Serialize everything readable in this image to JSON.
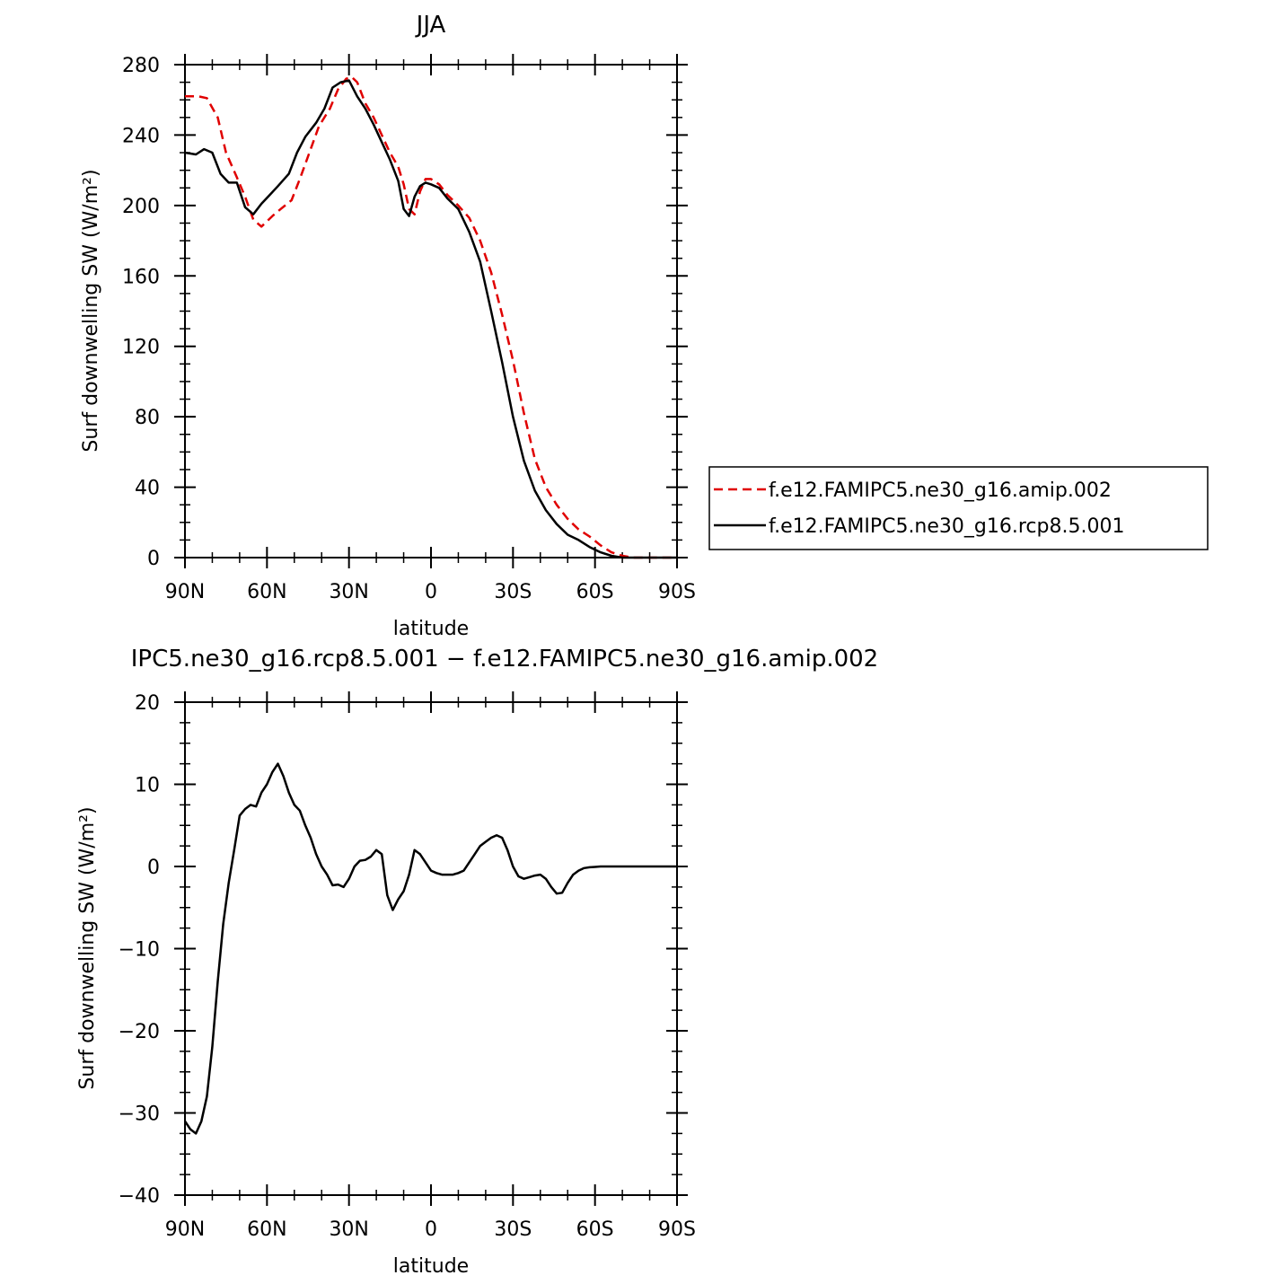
{
  "chart_data": [
    {
      "type": "line",
      "title": "JJA",
      "xlabel": "latitude",
      "ylabel": "Surf downwelling SW (W/m²)",
      "xlim": [
        90,
        -90
      ],
      "ylim": [
        0,
        280
      ],
      "xticks": [
        90,
        60,
        30,
        0,
        -30,
        -60,
        -90
      ],
      "xtick_labels": [
        "90N",
        "60N",
        "30N",
        "0",
        "30S",
        "60S",
        "90S"
      ],
      "yticks": [
        0,
        40,
        80,
        120,
        160,
        200,
        240,
        280
      ],
      "ytick_labels": [
        "0",
        "40",
        "80",
        "120",
        "160",
        "200",
        "240",
        "280"
      ],
      "legend_position": "right",
      "series": [
        {
          "name": "f.e12.FAMIPC5.ne30_g16.amip.002",
          "color": "#e00000",
          "dash": "dashed",
          "x": [
            90,
            85,
            82,
            78,
            75,
            71,
            68,
            65,
            62,
            58,
            55,
            51,
            48,
            44,
            41,
            37,
            34,
            31,
            29,
            27,
            24,
            21,
            18,
            15,
            12,
            10,
            8,
            6,
            4,
            2,
            0,
            -3,
            -6,
            -10,
            -14,
            -18,
            -22,
            -26,
            -30,
            -34,
            -38,
            -42,
            -46,
            -50,
            -54,
            -58,
            -62,
            -66,
            -70,
            -74,
            -78,
            -82,
            -86,
            -90
          ],
          "y": [
            262,
            262,
            261,
            250,
            230,
            216,
            205,
            192,
            188,
            194,
            198,
            203,
            215,
            232,
            245,
            255,
            266,
            272,
            273,
            270,
            258,
            250,
            240,
            230,
            222,
            212,
            198,
            195,
            208,
            215,
            215,
            212,
            206,
            200,
            193,
            180,
            162,
            138,
            112,
            82,
            56,
            40,
            30,
            22,
            16,
            12,
            7,
            3,
            1,
            0,
            0,
            0,
            0,
            0
          ]
        },
        {
          "name": "f.e12.FAMIPC5.ne30_g16.rcp8.5.001",
          "color": "#000000",
          "dash": "solid",
          "x": [
            90,
            86,
            83,
            80,
            77,
            74,
            71,
            68,
            65,
            62,
            59,
            56,
            52,
            49,
            46,
            42,
            39,
            36,
            33,
            30,
            27,
            24,
            21,
            18,
            15,
            12,
            10,
            8,
            6,
            4,
            2,
            0,
            -3,
            -6,
            -10,
            -14,
            -18,
            -22,
            -26,
            -30,
            -34,
            -38,
            -42,
            -46,
            -50,
            -54,
            -58,
            -62,
            -66,
            -70,
            -74,
            -78,
            -82,
            -86,
            -90
          ],
          "y": [
            230,
            229,
            232,
            230,
            218,
            213,
            213,
            199,
            195,
            201,
            206,
            211,
            218,
            230,
            239,
            247,
            255,
            267,
            270,
            271,
            262,
            255,
            246,
            236,
            226,
            214,
            198,
            194,
            205,
            211,
            213,
            212,
            210,
            204,
            198,
            185,
            168,
            140,
            111,
            80,
            55,
            38,
            27,
            19,
            13,
            10,
            6,
            3,
            1,
            0,
            0,
            0,
            0,
            0,
            0
          ]
        }
      ]
    },
    {
      "type": "line",
      "title": "IPC5.ne30_g16.rcp8.5.001 − f.e12.FAMIPC5.ne30_g16.amip.002",
      "xlabel": "latitude",
      "ylabel": "Surf downwelling SW (W/m²)",
      "xlim": [
        90,
        -90
      ],
      "ylim": [
        -40,
        20
      ],
      "xticks": [
        90,
        60,
        30,
        0,
        -30,
        -60,
        -90
      ],
      "xtick_labels": [
        "90N",
        "60N",
        "30N",
        "0",
        "30S",
        "60S",
        "90S"
      ],
      "yticks": [
        -40,
        -30,
        -20,
        -10,
        0,
        10,
        20
      ],
      "ytick_labels": [
        "−40",
        "−30",
        "−20",
        "−10",
        "0",
        "10",
        "20"
      ],
      "series": [
        {
          "color": "#000000",
          "dash": "solid",
          "x": [
            90,
            88,
            86,
            84,
            82,
            80,
            78,
            76,
            74,
            72,
            70,
            68,
            66,
            64,
            62,
            60,
            58,
            56,
            54,
            52,
            50,
            48,
            46,
            44,
            42,
            40,
            38,
            36,
            34,
            32,
            30,
            28,
            26,
            24,
            22,
            20,
            18,
            16,
            14,
            12,
            10,
            8,
            6,
            4,
            2,
            0,
            -2,
            -4,
            -6,
            -8,
            -10,
            -12,
            -14,
            -16,
            -18,
            -20,
            -22,
            -24,
            -26,
            -28,
            -30,
            -32,
            -34,
            -36,
            -38,
            -40,
            -42,
            -44,
            -46,
            -48,
            -50,
            -52,
            -54,
            -56,
            -58,
            -60,
            -62,
            -64,
            -66,
            -68,
            -70,
            -72,
            -74,
            -76,
            -80,
            -84,
            -88,
            -90
          ],
          "y": [
            -31,
            -32,
            -32.5,
            -31,
            -28,
            -22,
            -14,
            -7,
            -2,
            2,
            6.2,
            7,
            7.5,
            7.3,
            9,
            10,
            11.5,
            12.5,
            11,
            9,
            7.5,
            6.8,
            5,
            3.5,
            1.5,
            0,
            -1,
            -2.3,
            -2.2,
            -2.5,
            -1.5,
            0,
            0.7,
            0.8,
            1.2,
            2,
            1.5,
            -3.5,
            -5.3,
            -4,
            -3,
            -1,
            2,
            1.5,
            0.5,
            -0.5,
            -0.8,
            -1,
            -1,
            -1,
            -0.8,
            -0.5,
            0.5,
            1.5,
            2.5,
            3,
            3.5,
            3.8,
            3.5,
            2,
            0,
            -1.2,
            -1.5,
            -1.3,
            -1.1,
            -1,
            -1.5,
            -2.5,
            -3.3,
            -3.2,
            -2,
            -1,
            -0.5,
            -0.2,
            -0.1,
            -0.05,
            0,
            0,
            0,
            0,
            0,
            0,
            0,
            0,
            0,
            0,
            0,
            0
          ]
        }
      ]
    }
  ]
}
